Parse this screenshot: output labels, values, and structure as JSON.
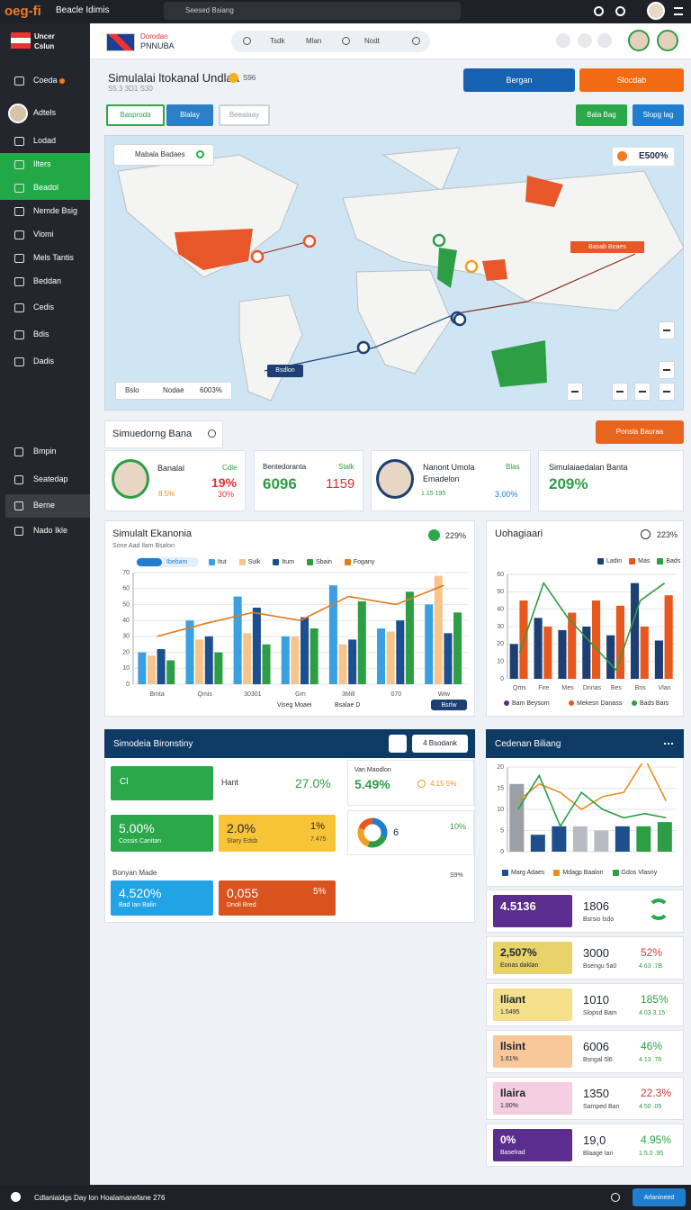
{
  "topbar": {
    "brand": "oeg-fi",
    "app": "Beacle Idimis",
    "search": "Seesed Bsiang"
  },
  "sidebar": {
    "logo": [
      "Uncer",
      "Cslun"
    ],
    "items": [
      "Coeda",
      "Adtels",
      "Lodad",
      "Ilters",
      "Beadol",
      "Nemde Bsig",
      "Vlomi",
      "Mels Tantis",
      "Beddan",
      "Cedis",
      "Bdis",
      "Dadis"
    ],
    "lower": [
      "Bmpin",
      "Seatedap",
      "Berne",
      "Nado Ikle"
    ]
  },
  "header": {
    "brand": [
      "Dorodan",
      "PNNUBA"
    ],
    "search": [
      "Tsdk",
      "Mlan",
      "Nodt"
    ]
  },
  "title": {
    "text": "Simulalai ltokanal Undlaa",
    "badge": "S96",
    "subtitle": "S5.3 3D1 S30"
  },
  "actions": [
    "Bergan",
    "Slocdab"
  ],
  "tabs": [
    "Basproda",
    "Blalay",
    "Beealaay"
  ],
  "tab_actions": [
    "Bala Bag",
    "Slopg Iag"
  ],
  "map": {
    "search": "Mabala Badaes",
    "badge": "E500%",
    "route_label": "Basab Beaes",
    "pin_label": "Bsdlon",
    "legend": [
      "Bslo",
      "Nodae",
      "6003%"
    ]
  },
  "section": {
    "title": "Simuedorng Bana",
    "button": "Ponsla Bauraa"
  },
  "cards": [
    {
      "name": "Banalal",
      "tag": "Cdle",
      "value": "19%",
      "sub": "30%",
      "note": "8.5%"
    },
    {
      "name": "Bentedoranta",
      "tag": "Stalk",
      "value": "6096",
      "sub": "1159"
    },
    {
      "name": "Nanont Umola",
      "name2": "Emadelon",
      "tag": "Blas",
      "note": "1.15 195",
      "sub": "3.00%"
    },
    {
      "name": "Simulaiaedalan Banta",
      "value": "209%"
    }
  ],
  "chart_main": {
    "type": "bar",
    "title": "Simulalt Ekanonia",
    "subtitle": "Sone Aad Ilam Bsalon",
    "badge": "229%",
    "legend_badge": "Ibebam",
    "categories": [
      "Bmta",
      "Qmis",
      "30301",
      "Grn",
      "3Mill",
      "070",
      "Wiw"
    ],
    "ylim": [
      0,
      70
    ],
    "yticks": [
      0,
      10,
      20,
      30,
      40,
      50,
      60,
      70
    ],
    "grid": true,
    "series": [
      {
        "name": "Itut",
        "type": "bar",
        "color": "#3aa0e0",
        "values": [
          20,
          40,
          55,
          30,
          62,
          35,
          50
        ]
      },
      {
        "name": "Sulk",
        "type": "bar",
        "color": "#f7c58a",
        "values": [
          18,
          28,
          32,
          30,
          25,
          33,
          68
        ]
      },
      {
        "name": "Itum",
        "type": "bar",
        "color": "#1d4f8f",
        "values": [
          22,
          30,
          48,
          42,
          28,
          40,
          32
        ]
      },
      {
        "name": "Sbain",
        "type": "bar",
        "color": "#2e9e44",
        "values": [
          15,
          20,
          25,
          35,
          52,
          58,
          45
        ]
      },
      {
        "name": "Fogany",
        "type": "line",
        "color": "#e07b20",
        "values": [
          30,
          38,
          45,
          40,
          55,
          50,
          62
        ]
      }
    ],
    "notes": [
      "Viseg Moaei",
      "Bsalae D"
    ],
    "note_badge": "Bsrlw"
  },
  "chart_right": {
    "type": "bar",
    "title": "Uohagiaari",
    "badge": "223%",
    "categories": [
      "Qms",
      "Fire",
      "Mes",
      "Dnnas",
      "Bes",
      "Bris",
      "Vlan"
    ],
    "ylim": [
      0,
      60
    ],
    "yticks": [
      0,
      10,
      20,
      30,
      40,
      50,
      60
    ],
    "grid": true,
    "series": [
      {
        "name": "Ladin",
        "type": "bar",
        "color": "#1d3f73",
        "values": [
          20,
          35,
          28,
          30,
          25,
          55,
          22
        ]
      },
      {
        "name": "Mas",
        "type": "bar",
        "color": "#e8571e",
        "values": [
          45,
          30,
          38,
          45,
          42,
          30,
          48
        ]
      },
      {
        "name": "Bads",
        "type": "line",
        "color": "#2e9e44",
        "values": [
          15,
          55,
          35,
          20,
          5,
          45,
          55
        ]
      }
    ],
    "notes": [
      "Bam Beysom",
      "Mekesn Danass",
      "Bads Bars"
    ]
  },
  "stats": {
    "title": "Simodeia Bironstiny",
    "button": "4 Bsodank",
    "t1": {
      "label": "Cl",
      "name": "Hant",
      "value": "27.0%"
    },
    "t2": {
      "name": "Van Maodlon",
      "value": "5.49%",
      "sub": "4.15 5%"
    },
    "t3": {
      "value": "5.00%",
      "sub": "Cossis Canitan"
    },
    "t4": {
      "value": "2.0%",
      "sub": "Stary Edsb",
      "right": "1%",
      "right_sub": "7.475"
    },
    "donut": {
      "values": [
        30,
        25,
        25,
        20
      ],
      "colors": [
        "#1f7ed0",
        "#2e9e44",
        "#f0a020",
        "#e8571e"
      ],
      "label": "6",
      "right": "10%"
    },
    "label": "Bonyan Made",
    "label_right": "S9%",
    "t5": {
      "value": "4.520%",
      "sub": "Bad Ian Balin"
    },
    "t6": {
      "value": "0,055",
      "sub": "Dnoli Bred",
      "right": "5%"
    }
  },
  "chart_small": {
    "type": "bar",
    "title": "Cedenan Biliang",
    "categories": [
      null,
      null,
      null,
      null,
      null,
      null,
      null,
      null
    ],
    "ylim": [
      0,
      20
    ],
    "yticks": [
      0,
      5,
      10,
      15,
      20
    ],
    "grid": true,
    "series": [
      {
        "name": "Marg Adaes",
        "type": "bar",
        "color": "#1f4e8c",
        "colors": [
          "#9aa0a6",
          "#1f4e8c",
          "#1f4e8c",
          "#b8bcc2",
          "#b8bcc2",
          "#1f4e8c",
          "#2e9e44",
          "#2e9e44"
        ],
        "values": [
          16,
          4,
          6,
          6,
          5,
          6,
          6,
          7
        ]
      },
      {
        "name": "Mdagp Baalon",
        "type": "line",
        "color": "#e8901e",
        "values": [
          12,
          16,
          14,
          10,
          13,
          14,
          22,
          12
        ]
      },
      {
        "name": "Gdos Vlasny",
        "type": "line",
        "color": "#2e9e44",
        "values": [
          10,
          18,
          6,
          14,
          10,
          8,
          9,
          8
        ]
      }
    ]
  },
  "list": [
    {
      "tile": "4.5136",
      "mid": "1806",
      "mid_sub": "Bsrsio lsdo"
    },
    {
      "tile": "2,507%",
      "tile_sub": "Eonas daklan",
      "mid": "3000",
      "mid_sub": "Bsengu 5a0",
      "right": "52%",
      "right_sub": "4.63 .7B"
    },
    {
      "tile": "Iliant",
      "tile_sub": "1.5495",
      "mid": "1010",
      "mid_sub": "Slopsd Bam",
      "right": "185%",
      "right_sub": "4.03 3.15"
    },
    {
      "tile": "Ilsint",
      "tile_sub": "1.61%",
      "mid": "6006",
      "mid_sub": "Bsngal 5l6",
      "right": "46%",
      "right_sub": "4.13 .76"
    },
    {
      "tile": "Ilaira",
      "tile_sub": "1.80%",
      "mid": "1350",
      "mid_sub": "Samped Ban",
      "right": "22.3%",
      "right_sub": "4.50 .05"
    },
    {
      "tile": "0%",
      "tile_sub": "Baselrad",
      "mid": "19,0",
      "mid_sub": "Blaage Ian",
      "right": "4.95%",
      "right_sub": "1.5.0 .95"
    }
  ],
  "footer": {
    "text": "Cdlaniaidgs Day lon Hoalamanefane 276",
    "button": "Arlanineed"
  }
}
